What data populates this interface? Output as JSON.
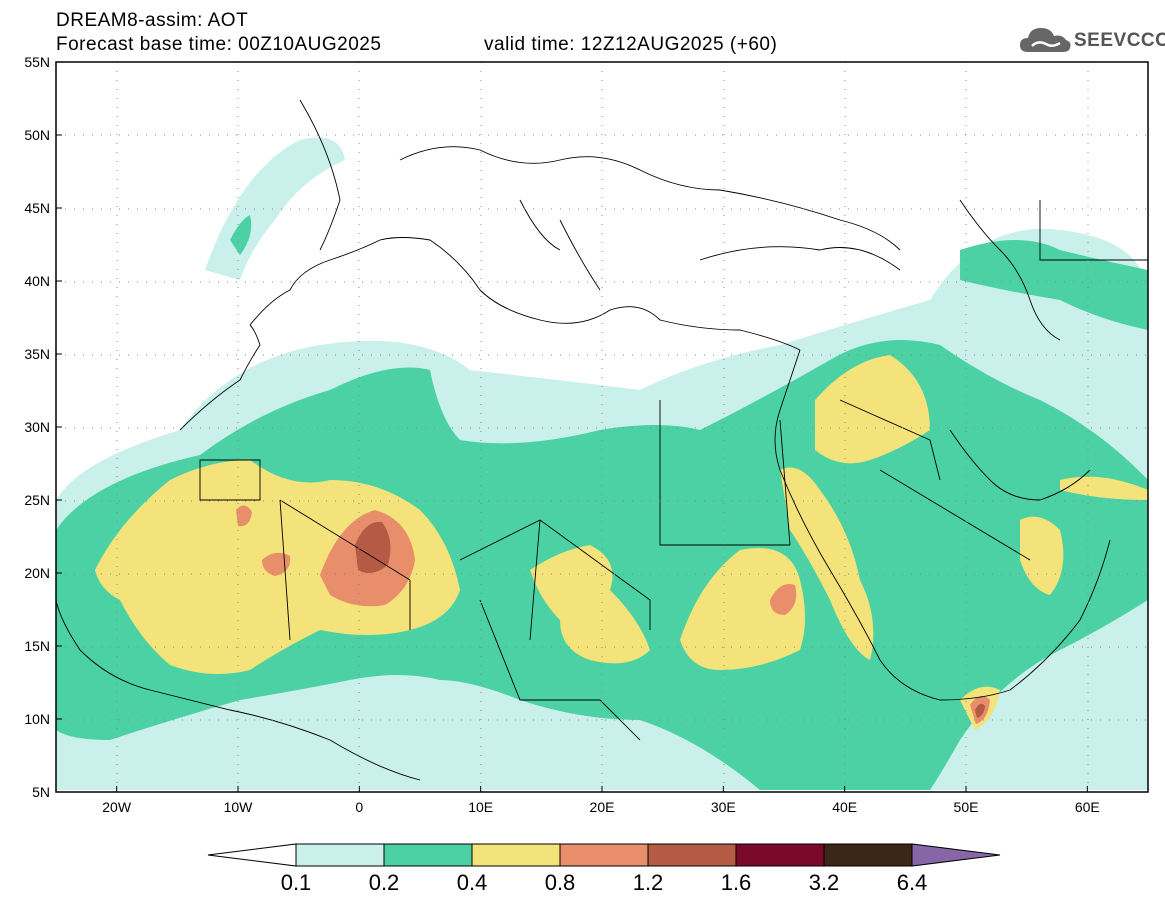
{
  "title": {
    "line1": "DREAM8-assim: AOT",
    "base": "Forecast base time: 00Z10AUG2025",
    "valid": "valid time: 12Z12AUG2025 (+60)"
  },
  "logo": {
    "icon": "cloud-icon",
    "text": "SEEVCCC"
  },
  "map": {
    "lon_range": [
      -25,
      65
    ],
    "lat_range": [
      5,
      55
    ],
    "lat_labels": [
      "55N",
      "50N",
      "45N",
      "40N",
      "35N",
      "30N",
      "25N",
      "20N",
      "15N",
      "10N",
      "5N"
    ],
    "lon_labels": [
      "20W",
      "10W",
      "0",
      "10E",
      "20E",
      "30E",
      "40E",
      "50E",
      "60E"
    ]
  },
  "colorbar": {
    "thresholds": [
      "0.1",
      "0.2",
      "0.4",
      "0.8",
      "1.2",
      "1.6",
      "3.2",
      "6.4"
    ],
    "colors": [
      "#c9f0ea",
      "#4cd1a4",
      "#f4e27a",
      "#e88e6a",
      "#b55a45",
      "#7a0a2a",
      "#3c2618",
      "#8766a8"
    ]
  }
}
